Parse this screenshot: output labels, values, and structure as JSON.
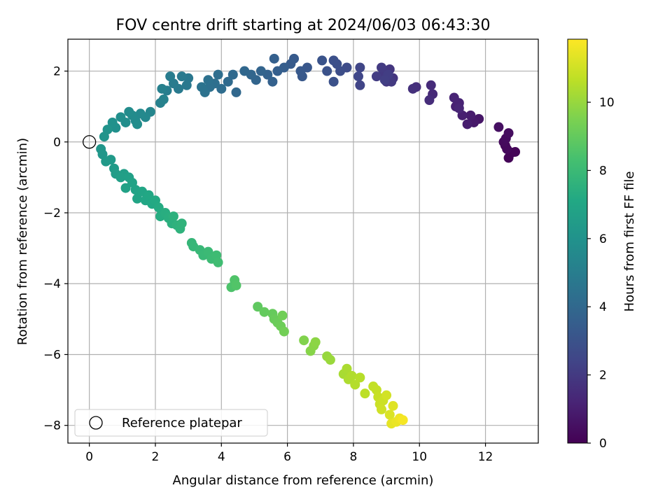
{
  "chart_data": {
    "type": "scatter",
    "title": "FOV centre drift starting at 2024/06/03 06:43:30",
    "xlabel": "Angular distance from reference (arcmin)",
    "ylabel": "Rotation from reference (arcmin)",
    "xlim": [
      -0.65,
      13.6
    ],
    "ylim": [
      -8.5,
      2.9
    ],
    "xticks": [
      0,
      2,
      4,
      6,
      8,
      10,
      12
    ],
    "yticks": [
      -8,
      -6,
      -4,
      -2,
      0,
      2
    ],
    "grid": true,
    "colormap": "viridis",
    "colorbar": {
      "label": "Hours from first FF file",
      "range": [
        0,
        11.85
      ],
      "ticks": [
        0,
        2,
        4,
        6,
        8,
        10
      ]
    },
    "legend": {
      "placement": "lower-left",
      "entries": [
        "Reference platepar"
      ]
    },
    "reference_point": {
      "x": 0,
      "y": 0
    },
    "points": [
      {
        "x": 12.8,
        "y": -0.3,
        "h": 0.0
      },
      {
        "x": 12.7,
        "y": -0.45,
        "h": 0.1
      },
      {
        "x": 12.9,
        "y": -0.28,
        "h": 0.15
      },
      {
        "x": 12.6,
        "y": -0.1,
        "h": 0.2
      },
      {
        "x": 12.65,
        "y": -0.2,
        "h": 0.25
      },
      {
        "x": 12.55,
        "y": 0.0,
        "h": 0.3
      },
      {
        "x": 12.62,
        "y": 0.1,
        "h": 0.35
      },
      {
        "x": 12.7,
        "y": 0.25,
        "h": 0.4
      },
      {
        "x": 12.4,
        "y": 0.42,
        "h": 0.5
      },
      {
        "x": 11.8,
        "y": 0.65,
        "h": 0.7
      },
      {
        "x": 11.65,
        "y": 0.55,
        "h": 0.8
      },
      {
        "x": 11.55,
        "y": 0.75,
        "h": 0.9
      },
      {
        "x": 11.45,
        "y": 0.5,
        "h": 0.95
      },
      {
        "x": 11.3,
        "y": 0.75,
        "h": 1.0
      },
      {
        "x": 11.1,
        "y": 1.0,
        "h": 1.1
      },
      {
        "x": 11.2,
        "y": 1.1,
        "h": 1.15
      },
      {
        "x": 11.05,
        "y": 1.25,
        "h": 1.2
      },
      {
        "x": 11.2,
        "y": 0.95,
        "h": 1.25
      },
      {
        "x": 10.4,
        "y": 1.35,
        "h": 1.4
      },
      {
        "x": 10.35,
        "y": 1.6,
        "h": 1.45
      },
      {
        "x": 10.3,
        "y": 1.18,
        "h": 1.5
      },
      {
        "x": 9.9,
        "y": 1.55,
        "h": 1.6
      },
      {
        "x": 9.8,
        "y": 1.5,
        "h": 1.65
      },
      {
        "x": 9.2,
        "y": 1.8,
        "h": 1.8
      },
      {
        "x": 9.1,
        "y": 2.05,
        "h": 1.85
      },
      {
        "x": 9.0,
        "y": 1.7,
        "h": 1.9
      },
      {
        "x": 8.9,
        "y": 1.95,
        "h": 1.95
      },
      {
        "x": 9.15,
        "y": 1.7,
        "h": 2.0
      },
      {
        "x": 8.85,
        "y": 2.1,
        "h": 2.05
      },
      {
        "x": 8.7,
        "y": 1.85,
        "h": 2.1
      },
      {
        "x": 9.05,
        "y": 1.9,
        "h": 2.15
      },
      {
        "x": 8.95,
        "y": 1.75,
        "h": 2.2
      },
      {
        "x": 8.2,
        "y": 1.6,
        "h": 2.4
      },
      {
        "x": 8.2,
        "y": 2.1,
        "h": 2.45
      },
      {
        "x": 8.15,
        "y": 1.85,
        "h": 2.5
      },
      {
        "x": 7.8,
        "y": 2.1,
        "h": 2.7
      },
      {
        "x": 7.6,
        "y": 2.0,
        "h": 2.8
      },
      {
        "x": 7.5,
        "y": 2.2,
        "h": 2.85
      },
      {
        "x": 7.4,
        "y": 2.3,
        "h": 2.9
      },
      {
        "x": 7.4,
        "y": 1.7,
        "h": 2.95
      },
      {
        "x": 7.2,
        "y": 2.0,
        "h": 3.0
      },
      {
        "x": 7.05,
        "y": 2.3,
        "h": 3.05
      },
      {
        "x": 6.6,
        "y": 2.1,
        "h": 3.2
      },
      {
        "x": 6.45,
        "y": 1.85,
        "h": 3.25
      },
      {
        "x": 6.4,
        "y": 2.0,
        "h": 3.3
      },
      {
        "x": 6.2,
        "y": 2.35,
        "h": 3.35
      },
      {
        "x": 6.1,
        "y": 2.2,
        "h": 3.4
      },
      {
        "x": 5.9,
        "y": 2.1,
        "h": 3.5
      },
      {
        "x": 5.7,
        "y": 2.0,
        "h": 3.55
      },
      {
        "x": 5.6,
        "y": 2.35,
        "h": 3.6
      },
      {
        "x": 5.55,
        "y": 1.7,
        "h": 3.65
      },
      {
        "x": 5.4,
        "y": 1.9,
        "h": 3.7
      },
      {
        "x": 5.2,
        "y": 2.0,
        "h": 3.8
      },
      {
        "x": 5.05,
        "y": 1.75,
        "h": 3.85
      },
      {
        "x": 4.9,
        "y": 1.9,
        "h": 3.9
      },
      {
        "x": 4.7,
        "y": 2.0,
        "h": 3.95
      },
      {
        "x": 4.45,
        "y": 1.4,
        "h": 4.0
      },
      {
        "x": 4.35,
        "y": 1.9,
        "h": 4.05
      },
      {
        "x": 4.2,
        "y": 1.7,
        "h": 4.1
      },
      {
        "x": 4.0,
        "y": 1.5,
        "h": 4.2
      },
      {
        "x": 3.9,
        "y": 1.9,
        "h": 4.25
      },
      {
        "x": 3.8,
        "y": 1.65,
        "h": 4.3
      },
      {
        "x": 3.65,
        "y": 1.55,
        "h": 4.35
      },
      {
        "x": 3.6,
        "y": 1.75,
        "h": 4.4
      },
      {
        "x": 3.5,
        "y": 1.4,
        "h": 4.45
      },
      {
        "x": 3.4,
        "y": 1.55,
        "h": 4.5
      },
      {
        "x": 3.0,
        "y": 1.8,
        "h": 4.7
      },
      {
        "x": 2.95,
        "y": 1.6,
        "h": 4.75
      },
      {
        "x": 2.8,
        "y": 1.85,
        "h": 4.8
      },
      {
        "x": 2.7,
        "y": 1.5,
        "h": 4.85
      },
      {
        "x": 2.55,
        "y": 1.65,
        "h": 4.9
      },
      {
        "x": 2.45,
        "y": 1.85,
        "h": 4.95
      },
      {
        "x": 2.35,
        "y": 1.45,
        "h": 5.0
      },
      {
        "x": 2.2,
        "y": 1.5,
        "h": 5.1
      },
      {
        "x": 2.15,
        "y": 1.1,
        "h": 5.15
      },
      {
        "x": 2.25,
        "y": 1.2,
        "h": 5.2
      },
      {
        "x": 1.85,
        "y": 0.85,
        "h": 5.4
      },
      {
        "x": 1.7,
        "y": 0.7,
        "h": 5.5
      },
      {
        "x": 1.55,
        "y": 0.8,
        "h": 5.55
      },
      {
        "x": 1.4,
        "y": 0.6,
        "h": 5.6
      },
      {
        "x": 1.3,
        "y": 0.75,
        "h": 5.65
      },
      {
        "x": 1.2,
        "y": 0.85,
        "h": 5.7
      },
      {
        "x": 1.45,
        "y": 0.5,
        "h": 5.75
      },
      {
        "x": 1.1,
        "y": 0.55,
        "h": 5.8
      },
      {
        "x": 0.95,
        "y": 0.7,
        "h": 5.85
      },
      {
        "x": 0.8,
        "y": 0.4,
        "h": 5.9
      },
      {
        "x": 0.7,
        "y": 0.55,
        "h": 5.95
      },
      {
        "x": 0.55,
        "y": 0.35,
        "h": 6.05
      },
      {
        "x": 0.45,
        "y": 0.15,
        "h": 6.1
      },
      {
        "x": 0.35,
        "y": -0.2,
        "h": 6.2
      },
      {
        "x": 0.4,
        "y": -0.35,
        "h": 6.25
      },
      {
        "x": 0.5,
        "y": -0.55,
        "h": 6.35
      },
      {
        "x": 0.65,
        "y": -0.5,
        "h": 6.4
      },
      {
        "x": 0.75,
        "y": -0.75,
        "h": 6.45
      },
      {
        "x": 0.8,
        "y": -0.9,
        "h": 6.55
      },
      {
        "x": 1.05,
        "y": -0.9,
        "h": 6.6
      },
      {
        "x": 0.95,
        "y": -1.0,
        "h": 6.65
      },
      {
        "x": 1.2,
        "y": -1.0,
        "h": 6.7
      },
      {
        "x": 1.1,
        "y": -1.3,
        "h": 6.75
      },
      {
        "x": 1.3,
        "y": -1.15,
        "h": 6.8
      },
      {
        "x": 1.4,
        "y": -1.35,
        "h": 6.85
      },
      {
        "x": 1.45,
        "y": -1.6,
        "h": 6.9
      },
      {
        "x": 1.6,
        "y": -1.4,
        "h": 6.95
      },
      {
        "x": 1.7,
        "y": -1.65,
        "h": 7.0
      },
      {
        "x": 1.8,
        "y": -1.5,
        "h": 7.05
      },
      {
        "x": 1.9,
        "y": -1.75,
        "h": 7.1
      },
      {
        "x": 2.0,
        "y": -1.65,
        "h": 7.15
      },
      {
        "x": 2.1,
        "y": -1.85,
        "h": 7.2
      },
      {
        "x": 2.2,
        "y": -2.0,
        "h": 7.25
      },
      {
        "x": 2.15,
        "y": -2.1,
        "h": 7.3
      },
      {
        "x": 2.3,
        "y": -2.0,
        "h": 7.35
      },
      {
        "x": 2.4,
        "y": -2.15,
        "h": 7.4
      },
      {
        "x": 2.5,
        "y": -2.3,
        "h": 7.45
      },
      {
        "x": 2.55,
        "y": -2.1,
        "h": 7.5
      },
      {
        "x": 2.65,
        "y": -2.35,
        "h": 7.55
      },
      {
        "x": 2.75,
        "y": -2.45,
        "h": 7.6
      },
      {
        "x": 2.8,
        "y": -2.3,
        "h": 7.65
      },
      {
        "x": 3.1,
        "y": -2.85,
        "h": 7.8
      },
      {
        "x": 3.15,
        "y": -2.95,
        "h": 7.85
      },
      {
        "x": 3.35,
        "y": -3.05,
        "h": 7.9
      },
      {
        "x": 3.45,
        "y": -3.2,
        "h": 7.95
      },
      {
        "x": 3.6,
        "y": -3.1,
        "h": 8.0
      },
      {
        "x": 3.7,
        "y": -3.3,
        "h": 8.05
      },
      {
        "x": 3.85,
        "y": -3.2,
        "h": 8.1
      },
      {
        "x": 3.9,
        "y": -3.4,
        "h": 8.15
      },
      {
        "x": 4.3,
        "y": -4.1,
        "h": 8.5
      },
      {
        "x": 4.4,
        "y": -3.9,
        "h": 8.55
      },
      {
        "x": 4.45,
        "y": -4.05,
        "h": 8.6
      },
      {
        "x": 5.1,
        "y": -4.65,
        "h": 8.9
      },
      {
        "x": 5.3,
        "y": -4.8,
        "h": 9.0
      },
      {
        "x": 5.55,
        "y": -4.85,
        "h": 9.05
      },
      {
        "x": 5.6,
        "y": -5.0,
        "h": 9.1
      },
      {
        "x": 5.7,
        "y": -5.1,
        "h": 9.15
      },
      {
        "x": 5.8,
        "y": -5.2,
        "h": 9.2
      },
      {
        "x": 5.85,
        "y": -4.9,
        "h": 9.25
      },
      {
        "x": 5.9,
        "y": -5.35,
        "h": 9.3
      },
      {
        "x": 6.5,
        "y": -5.6,
        "h": 9.6
      },
      {
        "x": 6.7,
        "y": -5.9,
        "h": 9.7
      },
      {
        "x": 6.8,
        "y": -5.75,
        "h": 9.75
      },
      {
        "x": 6.85,
        "y": -5.65,
        "h": 9.8
      },
      {
        "x": 7.2,
        "y": -6.05,
        "h": 10.0
      },
      {
        "x": 7.3,
        "y": -6.15,
        "h": 10.05
      },
      {
        "x": 7.7,
        "y": -6.55,
        "h": 10.3
      },
      {
        "x": 7.8,
        "y": -6.4,
        "h": 10.35
      },
      {
        "x": 7.85,
        "y": -6.7,
        "h": 10.4
      },
      {
        "x": 7.95,
        "y": -6.6,
        "h": 10.45
      },
      {
        "x": 8.05,
        "y": -6.85,
        "h": 10.5
      },
      {
        "x": 8.2,
        "y": -6.65,
        "h": 10.55
      },
      {
        "x": 8.35,
        "y": -7.1,
        "h": 10.65
      },
      {
        "x": 8.6,
        "y": -6.9,
        "h": 10.75
      },
      {
        "x": 8.7,
        "y": -7.0,
        "h": 10.8
      },
      {
        "x": 8.75,
        "y": -7.2,
        "h": 10.85
      },
      {
        "x": 8.8,
        "y": -7.4,
        "h": 10.9
      },
      {
        "x": 8.9,
        "y": -7.3,
        "h": 10.95
      },
      {
        "x": 8.85,
        "y": -7.55,
        "h": 11.0
      },
      {
        "x": 9.0,
        "y": -7.15,
        "h": 11.05
      },
      {
        "x": 9.1,
        "y": -7.7,
        "h": 11.2
      },
      {
        "x": 9.2,
        "y": -7.45,
        "h": 11.3
      },
      {
        "x": 9.15,
        "y": -7.95,
        "h": 11.4
      },
      {
        "x": 9.3,
        "y": -7.9,
        "h": 11.5
      },
      {
        "x": 9.4,
        "y": -7.8,
        "h": 11.6
      },
      {
        "x": 9.5,
        "y": -7.85,
        "h": 11.7
      }
    ]
  }
}
